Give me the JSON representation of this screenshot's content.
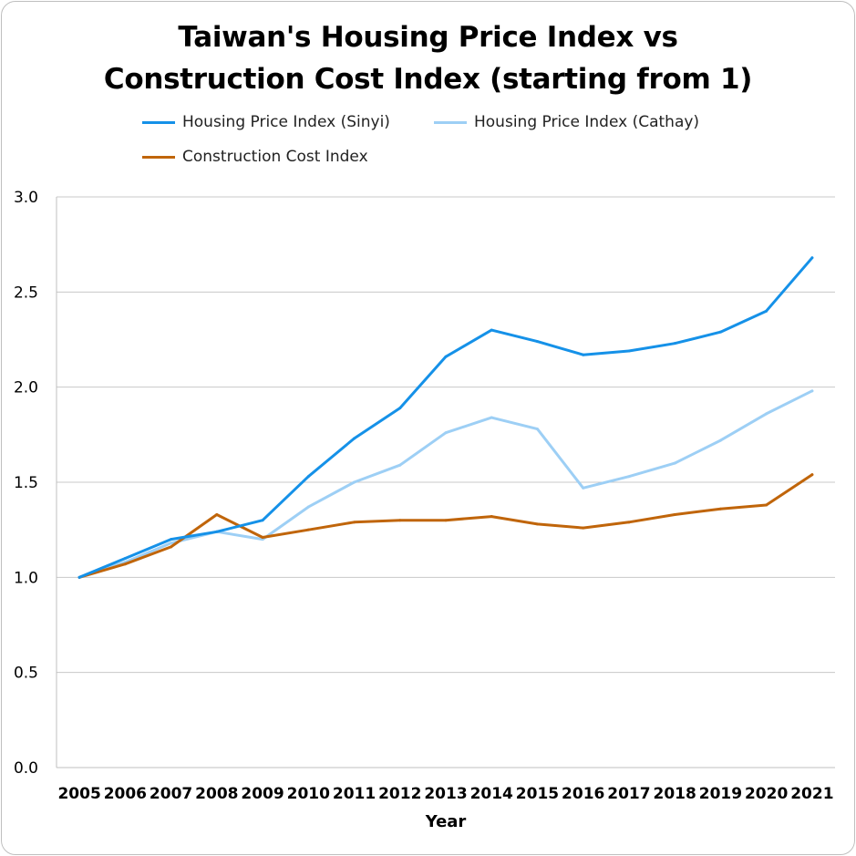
{
  "chart_data": {
    "type": "line",
    "title_line1": "Taiwan's Housing Price Index vs",
    "title_line2": "Construction Cost Index (starting from 1)",
    "xlabel": "Year",
    "ylabel": "",
    "ylim": [
      0,
      3
    ],
    "yticks": [
      "0.0",
      "0.5",
      "1.0",
      "1.5",
      "2.0",
      "2.5",
      "3.0"
    ],
    "categories": [
      "2005",
      "2006",
      "2007",
      "2008",
      "2009",
      "2010",
      "2011",
      "2012",
      "2013",
      "2014",
      "2015",
      "2016",
      "2017",
      "2018",
      "2019",
      "2020",
      "2021"
    ],
    "grid": true,
    "legend_position": "top",
    "series": [
      {
        "name": "Housing Price Index (Sinyi)",
        "color": "#1591e8",
        "values": [
          1.0,
          1.1,
          1.2,
          1.24,
          1.3,
          1.53,
          1.73,
          1.89,
          2.16,
          2.3,
          2.24,
          2.17,
          2.19,
          2.23,
          2.29,
          2.4,
          2.68
        ]
      },
      {
        "name": "Housing Price Index (Cathay)",
        "color": "#9dcff5",
        "values": [
          1.0,
          1.08,
          1.18,
          1.24,
          1.2,
          1.37,
          1.5,
          1.59,
          1.76,
          1.84,
          1.78,
          1.47,
          1.53,
          1.6,
          1.72,
          1.86,
          1.98
        ]
      },
      {
        "name": "Construction Cost Index",
        "color": "#c0650a",
        "values": [
          1.0,
          1.07,
          1.16,
          1.33,
          1.21,
          1.25,
          1.29,
          1.3,
          1.3,
          1.32,
          1.28,
          1.26,
          1.29,
          1.33,
          1.36,
          1.38,
          1.54
        ]
      }
    ]
  }
}
